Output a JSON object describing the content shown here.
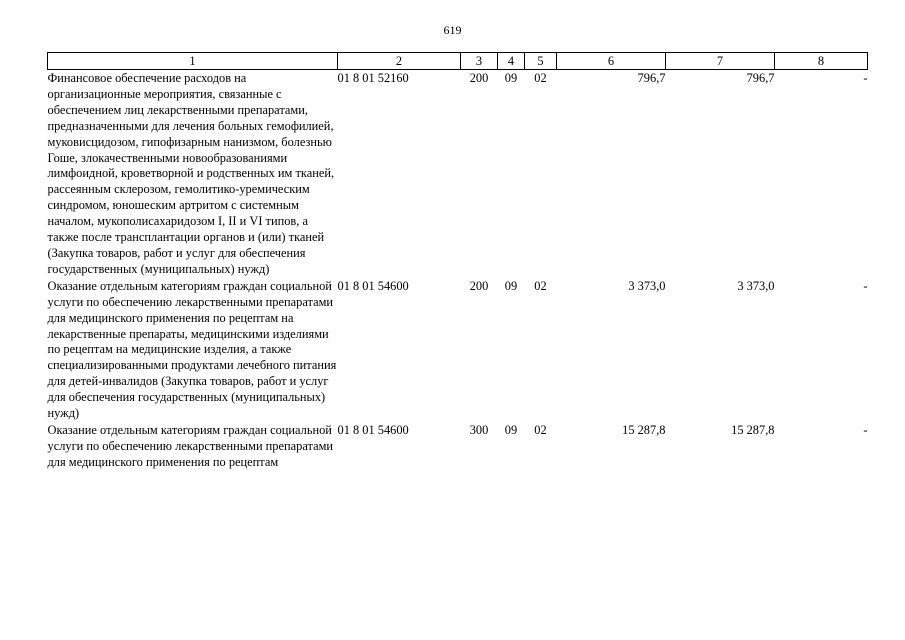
{
  "page_number": "619",
  "table": {
    "headers": [
      "1",
      "2",
      "3",
      "4",
      "5",
      "6",
      "7",
      "8"
    ],
    "rows": [
      {
        "name": "Финансовое обеспечение расходов на организационные мероприятия, связанные с обеспечением лиц лекарственными препаратами, предназначенными для лечения больных гемофилией, муковисцидозом, гипофизарным нанизмом, болезнью Гоше, злокачественными новообразованиями лимфоидной, кроветворной и родственных им тканей, рассеянным склерозом, гемолитико-уремическим синдромом, юношеским артритом с системным началом, мукополисахаридозом I, II и VI типов, а также после трансплантации органов и (или) тканей (Закупка товаров, работ и услуг для обеспечения государственных (муниципальных) нужд)",
        "code": "01 8 01 52160",
        "c3": "200",
        "c4": "09",
        "c5": "02",
        "c6": "796,7",
        "c7": "796,7",
        "c8": "-"
      },
      {
        "name": "Оказание отдельным категориям граждан социальной услуги по обеспечению лекарственными препаратами для медицинского применения по рецептам на лекарственные препараты, медицинскими изделиями по рецептам на медицинские изделия, а также специализированными продуктами лечебного питания для детей-инвалидов (Закупка товаров, работ и услуг для обеспечения государственных (муниципальных) нужд)",
        "code": "01 8 01 54600",
        "c3": "200",
        "c4": "09",
        "c5": "02",
        "c6": "3 373,0",
        "c7": "3 373,0",
        "c8": "-"
      },
      {
        "name": "Оказание отдельным категориям граждан социальной услуги по обеспечению лекарственными препаратами для медицинского применения по рецептам",
        "code": "01 8 01 54600",
        "c3": "300",
        "c4": "09",
        "c5": "02",
        "c6": "15 287,8",
        "c7": "15 287,8",
        "c8": "-"
      }
    ]
  }
}
